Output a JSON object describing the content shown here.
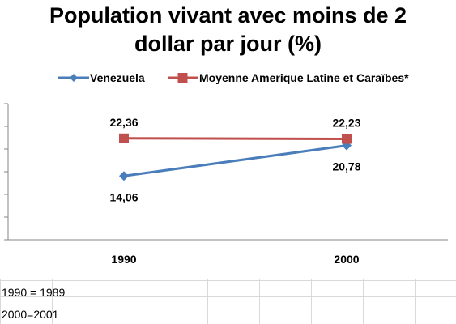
{
  "chart_data": {
    "type": "line",
    "title_lines": [
      "Population  vivant avec moins de 2",
      "dollar par jour (%)"
    ],
    "categories": [
      "1990",
      "2000"
    ],
    "series": [
      {
        "name": "Venezuela",
        "values": [
          14.06,
          20.78
        ],
        "labels": [
          "14,06",
          "20,78"
        ],
        "color": "#4a7ebb",
        "marker": "diamond"
      },
      {
        "name": "Moyenne Amerique Latine et Caraïbes*",
        "values": [
          22.36,
          22.23
        ],
        "labels": [
          "22,36",
          "22,23"
        ],
        "color": "#c0504d",
        "marker": "square"
      }
    ],
    "ylim": [
      0,
      30
    ],
    "legend_position": "top",
    "gridlines": false
  },
  "notes": [
    "1990 = 1989",
    "2000=2001"
  ]
}
